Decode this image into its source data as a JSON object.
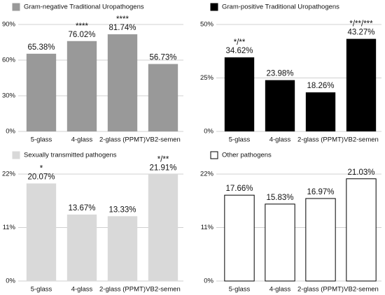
{
  "chart_data": [
    {
      "type": "bar",
      "categories": [
        "5-glass",
        "4-glass",
        "2-glass (PPMT)",
        "VB2-semen"
      ],
      "series": [
        {
          "name": "Gram-negative Traditional Uropathogens",
          "color": "#999999",
          "values": [
            65.38,
            76.02,
            81.74,
            56.73
          ],
          "value_labels": [
            "65.38%",
            "76.02%",
            "81.74%",
            "56.73%"
          ]
        }
      ],
      "annotations": [
        null,
        "****",
        "****",
        null
      ],
      "ylim": [
        0,
        90
      ],
      "yticks": [
        {
          "value": 0,
          "label": "0%"
        },
        {
          "value": 30,
          "label": "30%"
        },
        {
          "value": 60,
          "label": "60%"
        },
        {
          "value": 90,
          "label": "90%"
        }
      ],
      "grid": true
    },
    {
      "type": "bar",
      "categories": [
        "5-glass",
        "4-glass",
        "2-glass (PPMT)",
        "VB2-semen"
      ],
      "series": [
        {
          "name": "Gram-positive Traditional Uropathogens",
          "color": "#000000",
          "values": [
            34.62,
            23.98,
            18.26,
            43.27
          ],
          "value_labels": [
            "34.62%",
            "23.98%",
            "18.26%",
            "43.27%"
          ]
        }
      ],
      "annotations": [
        "*/**",
        null,
        null,
        "*/**/***"
      ],
      "ylim": [
        0,
        50
      ],
      "yticks": [
        {
          "value": 0,
          "label": "0%"
        },
        {
          "value": 25,
          "label": "25%"
        },
        {
          "value": 50,
          "label": "50%"
        }
      ],
      "grid": true
    },
    {
      "type": "bar",
      "categories": [
        "5-glass",
        "4-glass",
        "2-glass (PPMT)",
        "VB2-semen"
      ],
      "series": [
        {
          "name": "Sexually transmitted pathogens",
          "color": "#d9d9d9",
          "values": [
            20.07,
            13.67,
            13.33,
            21.91
          ],
          "value_labels": [
            "20.07%",
            "13.67%",
            "13.33%",
            "21.91%"
          ]
        }
      ],
      "annotations": [
        "*",
        null,
        null,
        "*/**"
      ],
      "ylim": [
        0,
        22
      ],
      "yticks": [
        {
          "value": 0,
          "label": "0%"
        },
        {
          "value": 11,
          "label": "11%"
        },
        {
          "value": 22,
          "label": "22%"
        }
      ],
      "grid": true
    },
    {
      "type": "bar",
      "categories": [
        "5-glass",
        "4-glass",
        "2-glass (PPMT)",
        "VB2-semen"
      ],
      "series": [
        {
          "name": "Other pathogens",
          "color": "#ffffff",
          "edgecolor": "#000000",
          "values": [
            17.66,
            15.83,
            16.97,
            21.03
          ],
          "value_labels": [
            "17.66%",
            "15.83%",
            "16.97%",
            "21.03%"
          ]
        }
      ],
      "annotations": [
        null,
        null,
        null,
        null
      ],
      "ylim": [
        0,
        22
      ],
      "yticks": [
        {
          "value": 0,
          "label": "0%"
        },
        {
          "value": 11,
          "label": "11%"
        },
        {
          "value": 22,
          "label": "22%"
        }
      ],
      "grid": true
    }
  ]
}
